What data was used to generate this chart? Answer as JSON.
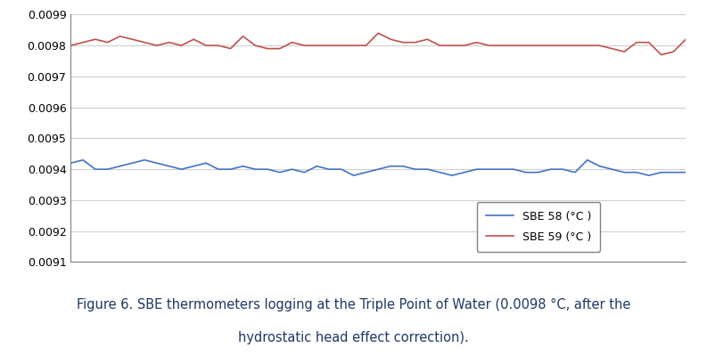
{
  "sbe58_x": [
    0,
    1,
    2,
    3,
    4,
    5,
    6,
    7,
    8,
    9,
    10,
    11,
    12,
    13,
    14,
    15,
    16,
    17,
    18,
    19,
    20,
    21,
    22,
    23,
    24,
    25,
    26,
    27,
    28,
    29,
    30,
    31,
    32,
    33,
    34,
    35,
    36,
    37,
    38,
    39,
    40,
    41,
    42,
    43,
    44,
    45,
    46,
    47,
    48,
    49,
    50
  ],
  "sbe58_y": [
    0.00942,
    0.00943,
    0.0094,
    0.0094,
    0.00941,
    0.00942,
    0.00943,
    0.00942,
    0.00941,
    0.0094,
    0.00941,
    0.00942,
    0.0094,
    0.0094,
    0.00941,
    0.0094,
    0.0094,
    0.00939,
    0.0094,
    0.00939,
    0.00941,
    0.0094,
    0.0094,
    0.00938,
    0.00939,
    0.0094,
    0.00941,
    0.00941,
    0.0094,
    0.0094,
    0.00939,
    0.00938,
    0.00939,
    0.0094,
    0.0094,
    0.0094,
    0.0094,
    0.00939,
    0.00939,
    0.0094,
    0.0094,
    0.00939,
    0.00943,
    0.00941,
    0.0094,
    0.00939,
    0.00939,
    0.00938,
    0.00939,
    0.00939,
    0.00939
  ],
  "sbe59_x": [
    0,
    1,
    2,
    3,
    4,
    5,
    6,
    7,
    8,
    9,
    10,
    11,
    12,
    13,
    14,
    15,
    16,
    17,
    18,
    19,
    20,
    21,
    22,
    23,
    24,
    25,
    26,
    27,
    28,
    29,
    30,
    31,
    32,
    33,
    34,
    35,
    36,
    37,
    38,
    39,
    40,
    41,
    42,
    43,
    44,
    45,
    46,
    47,
    48,
    49,
    50
  ],
  "sbe59_y": [
    0.0098,
    0.00981,
    0.00982,
    0.00981,
    0.00983,
    0.00982,
    0.00981,
    0.0098,
    0.00981,
    0.0098,
    0.00982,
    0.0098,
    0.0098,
    0.00979,
    0.00983,
    0.0098,
    0.00979,
    0.00979,
    0.00981,
    0.0098,
    0.0098,
    0.0098,
    0.0098,
    0.0098,
    0.0098,
    0.00984,
    0.00982,
    0.00981,
    0.00981,
    0.00982,
    0.0098,
    0.0098,
    0.0098,
    0.00981,
    0.0098,
    0.0098,
    0.0098,
    0.0098,
    0.0098,
    0.0098,
    0.0098,
    0.0098,
    0.0098,
    0.0098,
    0.00979,
    0.00978,
    0.00981,
    0.00981,
    0.00977,
    0.00978,
    0.00982
  ],
  "sbe58_color": "#4472C4",
  "sbe59_color": "#C0504D",
  "ylim_min": 0.0091,
  "ylim_max": 0.0099,
  "yticks": [
    0.0091,
    0.0092,
    0.0093,
    0.0094,
    0.0095,
    0.0096,
    0.0097,
    0.0098,
    0.0099
  ],
  "legend_sbe58": "SBE 58 (°C )",
  "legend_sbe59": "SBE 59 (°C )",
  "caption_line1": "Figure 6. SBE thermometers logging at the Triple Point of Water (0.0098 °C, after the",
  "caption_line2": "hydrostatic head effect correction).",
  "caption_fontsize": 10.5,
  "line_width": 1.2,
  "bg_color": "#FFFFFF",
  "grid_color": "#D0D0D0",
  "spine_color": "#808080",
  "tick_fontsize": 9,
  "legend_fontsize": 9
}
